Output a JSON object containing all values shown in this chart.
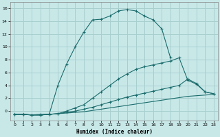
{
  "xlabel": "Humidex (Indice chaleur)",
  "bg_color": "#c8e8e8",
  "grid_color": "#a8cece",
  "line_color": "#1a6b6b",
  "xlim": [
    -0.5,
    23.5
  ],
  "ylim": [
    -1.5,
    17
  ],
  "xtick_labels": [
    "0",
    "1",
    "2",
    "3",
    "4",
    "5",
    "6",
    "7",
    "8",
    "9",
    "10",
    "11",
    "12",
    "13",
    "14",
    "15",
    "16",
    "17",
    "18",
    "19",
    "20",
    "21",
    "22",
    "23"
  ],
  "xticks": [
    0,
    1,
    2,
    3,
    4,
    5,
    6,
    7,
    8,
    9,
    10,
    11,
    12,
    13,
    14,
    15,
    16,
    17,
    18,
    19,
    20,
    21,
    22,
    23
  ],
  "yticks": [
    0,
    2,
    4,
    6,
    8,
    10,
    12,
    14,
    16
  ],
  "line_top_x": [
    0,
    1,
    2,
    3,
    4,
    5,
    6,
    7,
    8,
    9,
    10,
    11,
    12,
    13,
    14,
    15,
    16,
    17,
    18
  ],
  "line_top_y": [
    -0.5,
    -0.5,
    -0.6,
    -0.5,
    -0.5,
    4.0,
    7.3,
    10.0,
    12.3,
    14.2,
    14.3,
    14.8,
    15.6,
    15.8,
    15.6,
    14.8,
    14.2,
    12.8,
    8.3
  ],
  "line_mid_x": [
    0,
    1,
    2,
    3,
    4,
    5,
    6,
    7,
    8,
    9,
    10,
    11,
    12,
    13,
    14,
    15,
    16,
    17,
    18,
    19,
    20,
    21,
    22,
    23
  ],
  "line_mid_y": [
    -0.5,
    -0.5,
    -0.6,
    -0.6,
    -0.5,
    -0.4,
    0.0,
    0.5,
    1.0,
    2.0,
    3.0,
    4.0,
    5.0,
    5.8,
    6.5,
    6.9,
    7.2,
    7.5,
    7.8,
    8.3,
    4.8,
    4.2,
    3.0,
    2.7
  ],
  "line_slow_x": [
    0,
    1,
    2,
    3,
    4,
    5,
    6,
    7,
    8,
    9,
    10,
    11,
    12,
    13,
    14,
    15,
    16,
    17,
    18,
    19,
    20,
    21,
    22,
    23
  ],
  "line_slow_y": [
    -0.5,
    -0.5,
    -0.6,
    -0.6,
    -0.5,
    -0.4,
    -0.2,
    0.0,
    0.3,
    0.6,
    1.0,
    1.4,
    1.8,
    2.2,
    2.5,
    2.8,
    3.1,
    3.4,
    3.7,
    4.0,
    5.0,
    4.3,
    3.0,
    2.7
  ],
  "line_flat_x": [
    0,
    1,
    2,
    3,
    4,
    5,
    6,
    7,
    8,
    9,
    10,
    11,
    12,
    13,
    14,
    15,
    16,
    17,
    18,
    19,
    20,
    21,
    22,
    23
  ],
  "line_flat_y": [
    -0.5,
    -0.5,
    -0.6,
    -0.6,
    -0.5,
    -0.4,
    -0.3,
    -0.2,
    -0.1,
    0.1,
    0.3,
    0.5,
    0.7,
    0.9,
    1.1,
    1.3,
    1.5,
    1.7,
    1.9,
    2.1,
    2.3,
    2.4,
    2.5,
    2.6
  ]
}
